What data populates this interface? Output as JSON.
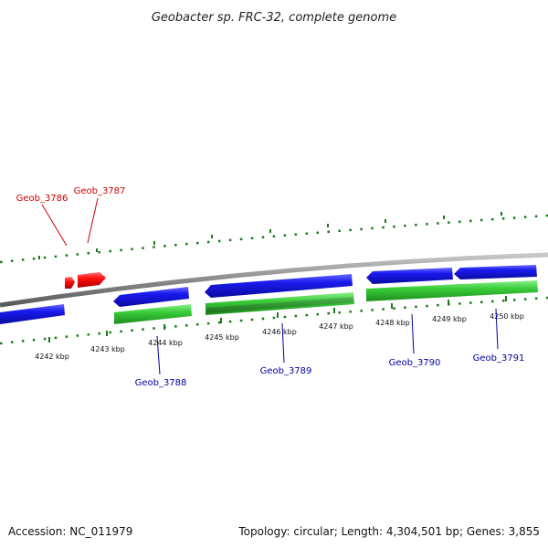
{
  "title": "Geobacter sp. FRC-32, complete genome",
  "footer": {
    "accession": "Accession: NC_011979",
    "summary": "Topology: circular; Length: 4,304,501 bp; Genes: 3,855"
  },
  "colors": {
    "forward_gene": "#ff0000",
    "reverse_gene": "#1010e0",
    "cds": "#33cc33",
    "cds_dark": "#1f8f1f",
    "backbone": "#8a8a8a",
    "ticks": "#1a7a1a",
    "label_forward": "#d00000",
    "label_reverse": "#0000a0"
  },
  "scale": {
    "unit": "kbp",
    "labels": [
      "4242 kbp",
      "4243 kbp",
      "4244 kbp",
      "4245 kbp",
      "4246 kbp",
      "4247 kbp",
      "4248 kbp",
      "4249 kbp",
      "4250 kbp"
    ]
  },
  "genes": [
    {
      "id": "Geob_3786",
      "strand": "+"
    },
    {
      "id": "Geob_3787",
      "strand": "+"
    },
    {
      "id": "Geob_3788",
      "strand": "-"
    },
    {
      "id": "Geob_3789",
      "strand": "-"
    },
    {
      "id": "Geob_3790",
      "strand": "-"
    },
    {
      "id": "Geob_3791",
      "strand": "-"
    }
  ]
}
